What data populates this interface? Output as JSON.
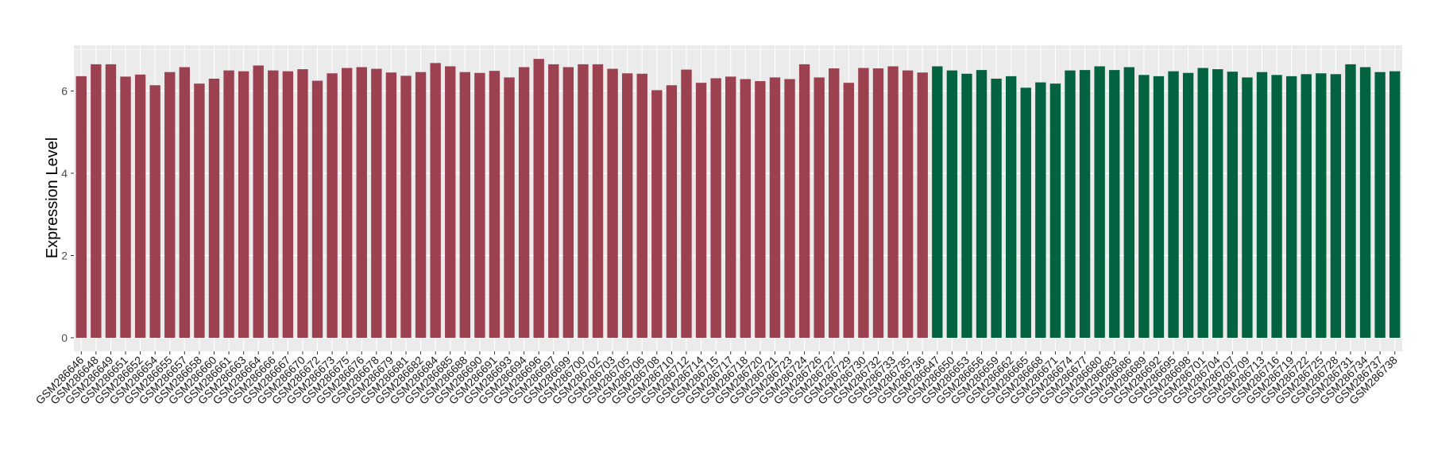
{
  "chart_data": {
    "type": "bar",
    "title": "",
    "xlabel": "",
    "ylabel": "Expression Level",
    "ylim": [
      0,
      7.1
    ],
    "yticks": [
      0,
      2,
      4,
      6
    ],
    "grid": true,
    "legend": "none",
    "categories": [
      "GSM286646",
      "GSM286648",
      "GSM286649",
      "GSM286651",
      "GSM286652",
      "GSM286654",
      "GSM286655",
      "GSM286657",
      "GSM286658",
      "GSM286660",
      "GSM286661",
      "GSM286663",
      "GSM286664",
      "GSM286666",
      "GSM286667",
      "GSM286670",
      "GSM286672",
      "GSM286673",
      "GSM286675",
      "GSM286676",
      "GSM286678",
      "GSM286679",
      "GSM286681",
      "GSM286682",
      "GSM286684",
      "GSM286685",
      "GSM286688",
      "GSM286690",
      "GSM286691",
      "GSM286693",
      "GSM286694",
      "GSM286696",
      "GSM286697",
      "GSM286699",
      "GSM286700",
      "GSM286702",
      "GSM286703",
      "GSM286705",
      "GSM286706",
      "GSM286708",
      "GSM286710",
      "GSM286712",
      "GSM286714",
      "GSM286715",
      "GSM286717",
      "GSM286718",
      "GSM286720",
      "GSM286721",
      "GSM286723",
      "GSM286724",
      "GSM286726",
      "GSM286727",
      "GSM286729",
      "GSM286730",
      "GSM286732",
      "GSM286733",
      "GSM286735",
      "GSM286736",
      "GSM286647",
      "GSM286650",
      "GSM286653",
      "GSM286656",
      "GSM286659",
      "GSM286662",
      "GSM286665",
      "GSM286668",
      "GSM286671",
      "GSM286674",
      "GSM286677",
      "GSM286680",
      "GSM286683",
      "GSM286686",
      "GSM286689",
      "GSM286692",
      "GSM286695",
      "GSM286698",
      "GSM286701",
      "GSM286704",
      "GSM286707",
      "GSM286709",
      "GSM286713",
      "GSM286716",
      "GSM286719",
      "GSM286722",
      "GSM286725",
      "GSM286728",
      "GSM286731",
      "GSM286734",
      "GSM286737",
      "GSM286738"
    ],
    "values": [
      6.36,
      6.65,
      6.65,
      6.35,
      6.4,
      6.14,
      6.46,
      6.58,
      6.18,
      6.3,
      6.5,
      6.48,
      6.62,
      6.5,
      6.48,
      6.53,
      6.25,
      6.43,
      6.56,
      6.58,
      6.54,
      6.45,
      6.37,
      6.46,
      6.68,
      6.6,
      6.46,
      6.44,
      6.49,
      6.33,
      6.58,
      6.78,
      6.65,
      6.58,
      6.65,
      6.65,
      6.54,
      6.43,
      6.42,
      6.02,
      6.14,
      6.52,
      6.2,
      6.31,
      6.35,
      6.29,
      6.24,
      6.33,
      6.29,
      6.65,
      6.33,
      6.55,
      6.2,
      6.56,
      6.55,
      6.6,
      6.5,
      6.45,
      6.6,
      6.5,
      6.42,
      6.51,
      6.3,
      6.36,
      6.08,
      6.21,
      6.18,
      6.5,
      6.51,
      6.6,
      6.51,
      6.58,
      6.39,
      6.36,
      6.48,
      6.44,
      6.56,
      6.53,
      6.47,
      6.33,
      6.46,
      6.39,
      6.36,
      6.41,
      6.43,
      6.41,
      6.65,
      6.58,
      6.46,
      6.48
    ],
    "groups_n": [
      58,
      32
    ],
    "colors": [
      "#9b4150",
      "#036340"
    ],
    "panel_background": "#ebebeb",
    "gridline_color": "#ffffff"
  }
}
